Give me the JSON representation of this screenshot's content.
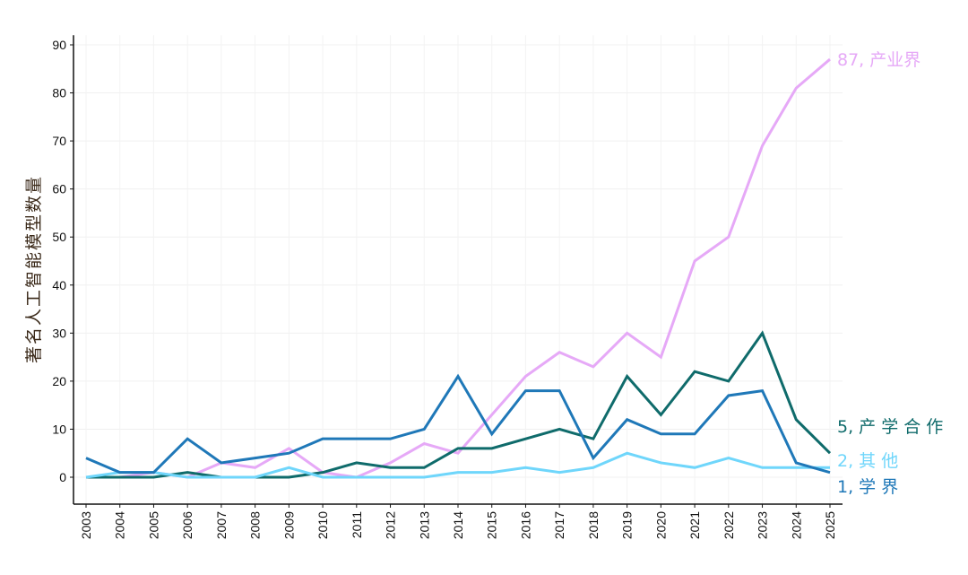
{
  "chart_data": {
    "type": "line",
    "title": "",
    "xlabel": "",
    "ylabel": "著名人工智能模型数量",
    "x": [
      2003,
      2004,
      2005,
      2006,
      2007,
      2008,
      2009,
      2010,
      2011,
      2012,
      2013,
      2014,
      2015,
      2016,
      2017,
      2018,
      2019,
      2020,
      2021,
      2022,
      2023,
      2024,
      2025
    ],
    "ylim": [
      -5.6,
      92
    ],
    "yticks": [
      0,
      10,
      20,
      30,
      40,
      50,
      60,
      70,
      80,
      90
    ],
    "grid": true,
    "legend": "end-of-line labels",
    "series": [
      {
        "name": "产业界",
        "end_label": "87, 产业界",
        "color": "#e6a9f7",
        "values": [
          0,
          0,
          1,
          0,
          3,
          2,
          6,
          1,
          0,
          3,
          7,
          5,
          13,
          21,
          26,
          23,
          30,
          25,
          45,
          50,
          69,
          81,
          87
        ]
      },
      {
        "name": "产学合作",
        "end_label": "5, 产 学 合 作",
        "color": "#0f6b6b",
        "values": [
          0,
          0,
          0,
          1,
          0,
          0,
          0,
          1,
          3,
          2,
          2,
          6,
          6,
          8,
          10,
          8,
          21,
          13,
          22,
          20,
          30,
          12,
          5
        ]
      },
      {
        "name": "其他",
        "end_label": "2, 其 他",
        "color": "#6fd6fb",
        "values": [
          0,
          1,
          1,
          0,
          0,
          0,
          2,
          0,
          0,
          0,
          0,
          1,
          1,
          2,
          1,
          2,
          5,
          3,
          2,
          4,
          2,
          2,
          2
        ]
      },
      {
        "name": "学界",
        "end_label": "1, 学 界",
        "color": "#1f78b8",
        "values": [
          4,
          1,
          1,
          8,
          3,
          4,
          5,
          8,
          8,
          8,
          10,
          21,
          9,
          18,
          18,
          4,
          12,
          9,
          9,
          17,
          18,
          3,
          1
        ]
      }
    ]
  }
}
